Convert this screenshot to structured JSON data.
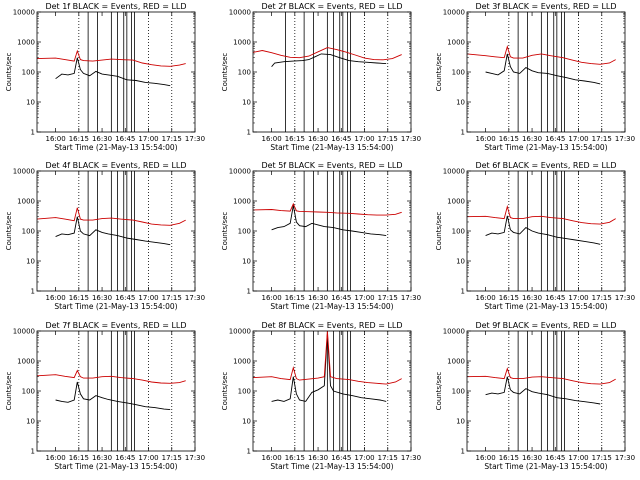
{
  "figure": {
    "panel_titles_suffix": " BLACK = Events, RED = LLD",
    "xlabel": "Start Time (21-May-13 15:54:00)",
    "ylabel": "Counts/sec",
    "colors": {
      "events": "#000000",
      "lld": "#cc0000",
      "axes": "#000000",
      "vlines": "#000000"
    }
  },
  "chart_data": [
    {
      "type": "line",
      "title": "Det 1f BLACK = Events, RED = LLD",
      "xlabel": "Start Time (21-May-13 15:54:00)",
      "ylabel": "Counts/sec",
      "x_ticks": [
        "16:00",
        "16:15",
        "16:30",
        "16:45",
        "17:00",
        "17:15",
        "17:30"
      ],
      "y_ticks": [
        "1",
        "10",
        "100",
        "1000",
        "10000"
      ],
      "x_range_minutes": [
        -6,
        96
      ],
      "y_range": [
        1,
        10000
      ],
      "y_scale": "log",
      "dotted_lines_at_minutes": [
        21,
        66,
        81
      ],
      "solid_lines_at_minutes": [
        27,
        33,
        42,
        46,
        50,
        52,
        55,
        57
      ],
      "series": [
        {
          "name": "Events",
          "x": [
            6,
            10,
            14,
            18,
            20,
            22,
            24,
            28,
            32,
            36,
            40,
            46,
            52,
            58,
            64,
            70,
            76,
            80
          ],
          "y": [
            60,
            85,
            80,
            90,
            300,
            120,
            90,
            75,
            105,
            85,
            80,
            72,
            55,
            52,
            45,
            42,
            38,
            35
          ]
        },
        {
          "name": "LLD",
          "x": [
            -6,
            6,
            12,
            18,
            20,
            22,
            24,
            30,
            36,
            42,
            48,
            56,
            62,
            68,
            74,
            80,
            86,
            90
          ],
          "y": [
            280,
            290,
            260,
            230,
            500,
            260,
            240,
            230,
            250,
            270,
            260,
            250,
            200,
            175,
            160,
            155,
            170,
            190
          ]
        }
      ]
    },
    {
      "type": "line",
      "title": "Det 2f BLACK = Events, RED = LLD",
      "xlabel": "Start Time (21-May-13 15:54:00)",
      "ylabel": "Counts/sec",
      "x_ticks": [
        "16:00",
        "16:15",
        "16:30",
        "16:45",
        "17:00",
        "17:15",
        "17:30"
      ],
      "y_ticks": [
        "1",
        "10",
        "100",
        "1000",
        "10000"
      ],
      "x_range_minutes": [
        -6,
        96
      ],
      "y_range": [
        1,
        10000
      ],
      "y_scale": "log",
      "dotted_lines_at_minutes": [
        21,
        66,
        81
      ],
      "solid_lines_at_minutes": [
        15,
        27,
        33,
        42,
        46,
        50,
        52,
        55,
        57
      ],
      "series": [
        {
          "name": "Events",
          "x": [
            6,
            8,
            14,
            20,
            26,
            30,
            34,
            38,
            44,
            50,
            56,
            62,
            68,
            74,
            80
          ],
          "y": [
            150,
            200,
            220,
            230,
            240,
            260,
            320,
            400,
            380,
            300,
            240,
            220,
            210,
            200,
            190
          ]
        },
        {
          "name": "LLD",
          "x": [
            -6,
            0,
            6,
            12,
            18,
            24,
            30,
            36,
            42,
            48,
            54,
            60,
            66,
            72,
            78,
            84,
            90
          ],
          "y": [
            450,
            520,
            440,
            360,
            310,
            300,
            340,
            470,
            650,
            560,
            460,
            370,
            290,
            260,
            255,
            280,
            380
          ]
        }
      ]
    },
    {
      "type": "line",
      "title": "Det 3f BLACK = Events, RED = LLD",
      "xlabel": "Start Time (21-May-13 15:54:00)",
      "ylabel": "Counts/sec",
      "x_ticks": [
        "16:00",
        "16:15",
        "16:30",
        "16:45",
        "17:00",
        "17:15",
        "17:30"
      ],
      "y_ticks": [
        "1",
        "10",
        "100",
        "1000",
        "10000"
      ],
      "x_range_minutes": [
        -6,
        96
      ],
      "y_range": [
        1,
        10000
      ],
      "y_scale": "log",
      "dotted_lines_at_minutes": [
        21,
        66,
        81
      ],
      "solid_lines_at_minutes": [
        27,
        33,
        42,
        46,
        50,
        52,
        55,
        57
      ],
      "series": [
        {
          "name": "Events",
          "x": [
            6,
            10,
            14,
            18,
            20,
            22,
            24,
            28,
            32,
            36,
            40,
            46,
            52,
            58,
            64,
            70,
            76,
            80
          ],
          "y": [
            100,
            90,
            80,
            110,
            400,
            150,
            100,
            90,
            140,
            110,
            95,
            90,
            75,
            65,
            55,
            50,
            45,
            40
          ]
        },
        {
          "name": "LLD",
          "x": [
            -6,
            6,
            12,
            18,
            20,
            22,
            24,
            30,
            36,
            42,
            48,
            56,
            62,
            68,
            74,
            80,
            86,
            90
          ],
          "y": [
            400,
            350,
            320,
            300,
            700,
            320,
            290,
            290,
            360,
            400,
            350,
            300,
            250,
            210,
            190,
            180,
            200,
            260
          ]
        }
      ]
    },
    {
      "type": "line",
      "title": "Det 4f BLACK = Events, RED = LLD",
      "xlabel": "Start Time (21-May-13 15:54:00)",
      "ylabel": "Counts/sec",
      "x_ticks": [
        "16:00",
        "16:15",
        "16:30",
        "16:45",
        "17:00",
        "17:15",
        "17:30"
      ],
      "y_ticks": [
        "1",
        "10",
        "100",
        "1000",
        "10000"
      ],
      "x_range_minutes": [
        -6,
        96
      ],
      "y_range": [
        1,
        10000
      ],
      "y_scale": "log",
      "dotted_lines_at_minutes": [
        21,
        66,
        81
      ],
      "solid_lines_at_minutes": [
        27,
        33,
        42,
        46,
        50,
        52,
        55,
        57
      ],
      "series": [
        {
          "name": "Events",
          "x": [
            6,
            10,
            14,
            18,
            20,
            22,
            24,
            28,
            32,
            36,
            40,
            46,
            52,
            58,
            64,
            70,
            76,
            80
          ],
          "y": [
            65,
            80,
            75,
            85,
            300,
            100,
            80,
            70,
            110,
            90,
            80,
            70,
            58,
            52,
            46,
            42,
            38,
            35
          ]
        },
        {
          "name": "LLD",
          "x": [
            -6,
            6,
            12,
            18,
            20,
            22,
            24,
            30,
            36,
            42,
            48,
            56,
            62,
            68,
            74,
            80,
            86,
            90
          ],
          "y": [
            250,
            280,
            250,
            220,
            600,
            250,
            230,
            230,
            260,
            270,
            250,
            230,
            200,
            170,
            160,
            155,
            180,
            230
          ]
        }
      ]
    },
    {
      "type": "line",
      "title": "Det 5f BLACK = Events, RED = LLD",
      "xlabel": "Start Time (21-May-13 15:54:00)",
      "ylabel": "Counts/sec",
      "x_ticks": [
        "16:00",
        "16:15",
        "16:30",
        "16:45",
        "17:00",
        "17:15",
        "17:30"
      ],
      "y_ticks": [
        "1",
        "10",
        "100",
        "1000",
        "10000"
      ],
      "x_range_minutes": [
        -6,
        96
      ],
      "y_range": [
        1,
        10000
      ],
      "y_scale": "log",
      "dotted_lines_at_minutes": [
        21,
        66,
        81
      ],
      "solid_lines_at_minutes": [
        27,
        33,
        42,
        46,
        50,
        52,
        55,
        57
      ],
      "series": [
        {
          "name": "Events",
          "x": [
            6,
            10,
            14,
            18,
            20,
            22,
            24,
            28,
            32,
            36,
            40,
            46,
            52,
            58,
            64,
            70,
            76,
            80
          ],
          "y": [
            110,
            130,
            140,
            180,
            700,
            200,
            150,
            140,
            180,
            160,
            140,
            130,
            110,
            100,
            90,
            80,
            75,
            70
          ]
        },
        {
          "name": "LLD",
          "x": [
            -6,
            6,
            12,
            18,
            20,
            22,
            24,
            30,
            36,
            42,
            48,
            56,
            62,
            68,
            74,
            80,
            86,
            90
          ],
          "y": [
            500,
            520,
            480,
            460,
            800,
            470,
            450,
            440,
            430,
            420,
            400,
            390,
            370,
            350,
            340,
            340,
            360,
            420
          ]
        }
      ]
    },
    {
      "type": "line",
      "title": "Det 6f BLACK = Events, RED = LLD",
      "xlabel": "Start Time (21-May-13 15:54:00)",
      "ylabel": "Counts/sec",
      "x_ticks": [
        "16:00",
        "16:15",
        "16:30",
        "16:45",
        "17:00",
        "17:15",
        "17:30"
      ],
      "y_ticks": [
        "1",
        "10",
        "100",
        "1000",
        "10000"
      ],
      "x_range_minutes": [
        -6,
        96
      ],
      "y_range": [
        1,
        10000
      ],
      "y_scale": "log",
      "dotted_lines_at_minutes": [
        21,
        66,
        81
      ],
      "solid_lines_at_minutes": [
        27,
        33,
        42,
        46,
        50,
        52,
        55,
        57
      ],
      "series": [
        {
          "name": "Events",
          "x": [
            6,
            10,
            14,
            18,
            20,
            22,
            24,
            28,
            32,
            36,
            40,
            46,
            52,
            58,
            64,
            70,
            76,
            80
          ],
          "y": [
            70,
            85,
            80,
            90,
            320,
            110,
            90,
            80,
            130,
            100,
            85,
            75,
            62,
            56,
            50,
            45,
            40,
            36
          ]
        },
        {
          "name": "LLD",
          "x": [
            -6,
            6,
            12,
            18,
            20,
            22,
            24,
            30,
            36,
            42,
            48,
            56,
            62,
            68,
            74,
            80,
            86,
            90
          ],
          "y": [
            300,
            310,
            280,
            260,
            650,
            280,
            260,
            260,
            300,
            310,
            280,
            260,
            220,
            190,
            175,
            170,
            195,
            260
          ]
        }
      ]
    },
    {
      "type": "line",
      "title": "Det 7f BLACK = Events, RED = LLD",
      "xlabel": "Start Time (21-May-13 15:54:00)",
      "ylabel": "Counts/sec",
      "x_ticks": [
        "16:00",
        "16:15",
        "16:30",
        "16:45",
        "17:00",
        "17:15",
        "17:30"
      ],
      "y_ticks": [
        "1",
        "10",
        "100",
        "1000",
        "10000"
      ],
      "x_range_minutes": [
        -6,
        96
      ],
      "y_range": [
        1,
        10000
      ],
      "y_scale": "log",
      "dotted_lines_at_minutes": [
        21,
        66,
        81
      ],
      "solid_lines_at_minutes": [
        27,
        33,
        42,
        46,
        50,
        52,
        55,
        57
      ],
      "series": [
        {
          "name": "Events",
          "x": [
            6,
            10,
            14,
            18,
            20,
            22,
            24,
            28,
            32,
            36,
            40,
            46,
            52,
            58,
            64,
            70,
            76,
            80
          ],
          "y": [
            50,
            45,
            42,
            50,
            200,
            80,
            55,
            50,
            70,
            60,
            52,
            45,
            40,
            35,
            30,
            28,
            25,
            24
          ]
        },
        {
          "name": "LLD",
          "x": [
            -6,
            6,
            12,
            18,
            20,
            22,
            24,
            30,
            36,
            42,
            48,
            56,
            62,
            68,
            74,
            80,
            86,
            90
          ],
          "y": [
            320,
            350,
            310,
            280,
            480,
            300,
            270,
            270,
            300,
            310,
            280,
            260,
            230,
            200,
            185,
            180,
            190,
            220
          ]
        }
      ]
    },
    {
      "type": "line",
      "title": "Det 8f BLACK = Events, RED = LLD",
      "xlabel": "Start Time (21-May-13 15:54:00)",
      "ylabel": "Counts/sec",
      "x_ticks": [
        "16:00",
        "16:15",
        "16:30",
        "16:45",
        "17:00",
        "17:15",
        "17:30"
      ],
      "y_ticks": [
        "1",
        "10",
        "100",
        "1000",
        "10000"
      ],
      "x_range_minutes": [
        -6,
        96
      ],
      "y_range": [
        1,
        10000
      ],
      "y_scale": "log",
      "dotted_lines_at_minutes": [
        21,
        66,
        81
      ],
      "solid_lines_at_minutes": [
        27,
        33,
        42,
        46,
        50,
        52,
        55,
        57
      ],
      "series": [
        {
          "name": "Events",
          "x": [
            6,
            10,
            14,
            18,
            20,
            22,
            24,
            28,
            32,
            36,
            40,
            42,
            44,
            46,
            52,
            58,
            64,
            70,
            76,
            80
          ],
          "y": [
            45,
            50,
            45,
            55,
            300,
            80,
            50,
            45,
            90,
            110,
            150,
            8000,
            150,
            100,
            80,
            70,
            60,
            55,
            50,
            45
          ]
        },
        {
          "name": "LLD",
          "x": [
            -6,
            6,
            12,
            18,
            20,
            22,
            24,
            30,
            36,
            40,
            42,
            44,
            48,
            56,
            62,
            68,
            74,
            80,
            86,
            90
          ],
          "y": [
            280,
            300,
            260,
            240,
            600,
            260,
            230,
            250,
            270,
            300,
            10000,
            300,
            260,
            240,
            210,
            190,
            180,
            170,
            200,
            260
          ]
        }
      ]
    },
    {
      "type": "line",
      "title": "Det 9f BLACK = Events, RED = LLD",
      "xlabel": "Start Time (21-May-13 15:54:00)",
      "ylabel": "Counts/sec",
      "x_ticks": [
        "16:00",
        "16:15",
        "16:30",
        "16:45",
        "17:00",
        "17:15",
        "17:30"
      ],
      "y_ticks": [
        "1",
        "10",
        "100",
        "1000",
        "10000"
      ],
      "x_range_minutes": [
        -6,
        96
      ],
      "y_range": [
        1,
        10000
      ],
      "y_scale": "log",
      "dotted_lines_at_minutes": [
        21,
        66,
        81
      ],
      "solid_lines_at_minutes": [
        27,
        33,
        42,
        46,
        50,
        52,
        55,
        57
      ],
      "series": [
        {
          "name": "Events",
          "x": [
            6,
            10,
            14,
            18,
            20,
            22,
            24,
            28,
            32,
            36,
            40,
            46,
            52,
            58,
            64,
            70,
            76,
            80
          ],
          "y": [
            75,
            85,
            80,
            90,
            300,
            110,
            90,
            80,
            120,
            95,
            85,
            75,
            60,
            55,
            48,
            44,
            40,
            37
          ]
        },
        {
          "name": "LLD",
          "x": [
            -6,
            6,
            12,
            18,
            20,
            22,
            24,
            30,
            36,
            42,
            48,
            56,
            62,
            68,
            74,
            80,
            86,
            90
          ],
          "y": [
            300,
            310,
            280,
            260,
            560,
            280,
            260,
            260,
            290,
            300,
            280,
            260,
            220,
            190,
            175,
            170,
            190,
            250
          ]
        }
      ]
    }
  ]
}
